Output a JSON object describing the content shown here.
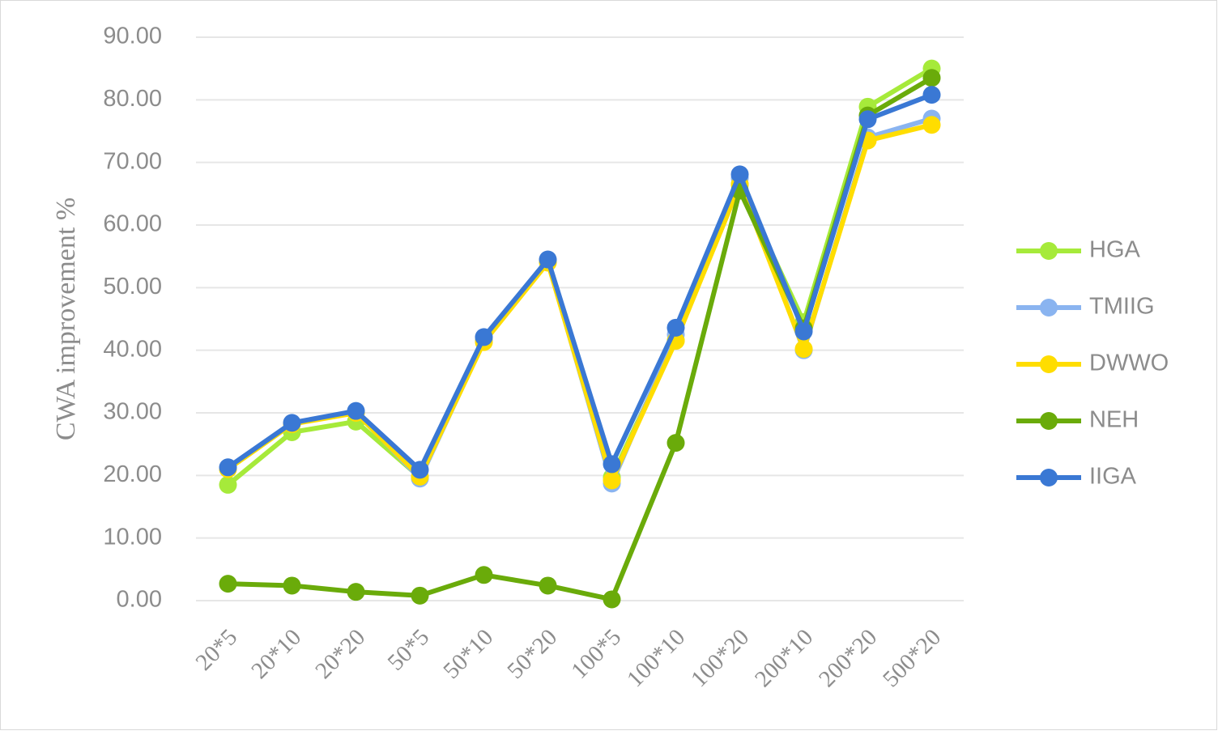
{
  "chart_data": {
    "type": "line",
    "y_label": "CWA improvement %",
    "categories": [
      "20*5",
      "20*10",
      "20*20",
      "50*5",
      "50*10",
      "50*20",
      "100*5",
      "100*10",
      "100*20",
      "200*10",
      "200*20",
      "500*20"
    ],
    "series": [
      {
        "name": "HGA",
        "color": "#a6ea3a",
        "values": [
          18.5,
          26.9,
          28.6,
          19.7,
          41.6,
          54.3,
          19.7,
          41.6,
          66.5,
          44.5,
          78.9,
          85.0
        ]
      },
      {
        "name": "TMIIG",
        "color": "#8ab4f0",
        "values": [
          21.2,
          28.3,
          30.2,
          19.5,
          41.5,
          54.2,
          18.7,
          42.5,
          67.5,
          40.0,
          74.0,
          77.0
        ]
      },
      {
        "name": "DWWO",
        "color": "#ffdd00",
        "values": [
          21.0,
          28.2,
          30.0,
          19.8,
          41.3,
          54.0,
          19.2,
          41.5,
          66.5,
          40.2,
          73.5,
          76.0
        ]
      },
      {
        "name": "NEH",
        "color": "#6aab0a",
        "values": [
          2.7,
          2.4,
          1.4,
          0.8,
          4.1,
          2.4,
          0.2,
          25.2,
          65.5,
          43.5,
          77.5,
          83.5
        ]
      },
      {
        "name": "IIGA",
        "color": "#3a78d4",
        "values": [
          21.3,
          28.4,
          30.3,
          20.9,
          42.1,
          54.5,
          21.8,
          43.6,
          68.1,
          43.0,
          76.9,
          80.8
        ]
      }
    ],
    "ylim": [
      0,
      90
    ],
    "yticks": [
      {
        "value": 0,
        "label": "0.00"
      },
      {
        "value": 10,
        "label": "10.00"
      },
      {
        "value": 20,
        "label": "20.00"
      },
      {
        "value": 30,
        "label": "30.00"
      },
      {
        "value": 40,
        "label": "40.00"
      },
      {
        "value": 50,
        "label": "50.00"
      },
      {
        "value": 60,
        "label": "60.00"
      },
      {
        "value": 70,
        "label": "70.00"
      },
      {
        "value": 80,
        "label": "80.00"
      },
      {
        "value": 90,
        "label": "90.00"
      }
    ],
    "grid": true,
    "legend": "right"
  }
}
